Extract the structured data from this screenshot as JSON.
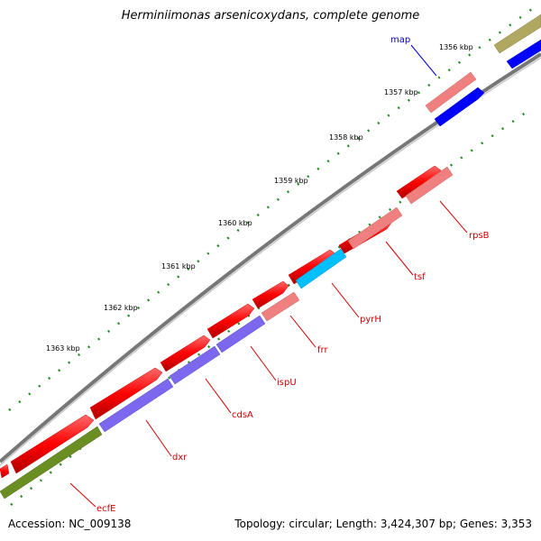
{
  "title": "Herminiimonas arsenicoxydans, complete genome",
  "footer": {
    "accession": "Accession: NC_009138",
    "summary": "Topology: circular; Length: 3,424,307 bp; Genes: 3,353"
  },
  "map_label": "map",
  "ticks": [
    "1356 kbp",
    "1357 kbp",
    "1358 kbp",
    "1359 kbp",
    "1360 kbp",
    "1361 kbp",
    "1362 kbp",
    "1363 kbp"
  ],
  "genes": [
    {
      "name": "rpsB",
      "color": "#f08080"
    },
    {
      "name": "tsf",
      "color": "#f08080"
    },
    {
      "name": "pyrH",
      "color": "#00bfff"
    },
    {
      "name": "frr",
      "color": "#f08080"
    },
    {
      "name": "ispU",
      "color": "#7b68ee"
    },
    {
      "name": "cdsA",
      "color": "#7b68ee"
    },
    {
      "name": "dxr",
      "color": "#7b68ee"
    },
    {
      "name": "ecfE",
      "color": "#6b8e23"
    }
  ],
  "colors": {
    "forward": "#ff0000",
    "reverse_pink": "#f08080",
    "blue": "#0000ff",
    "olive": "#b0a860",
    "backbone": "#888888",
    "ticks": "#228b22"
  }
}
